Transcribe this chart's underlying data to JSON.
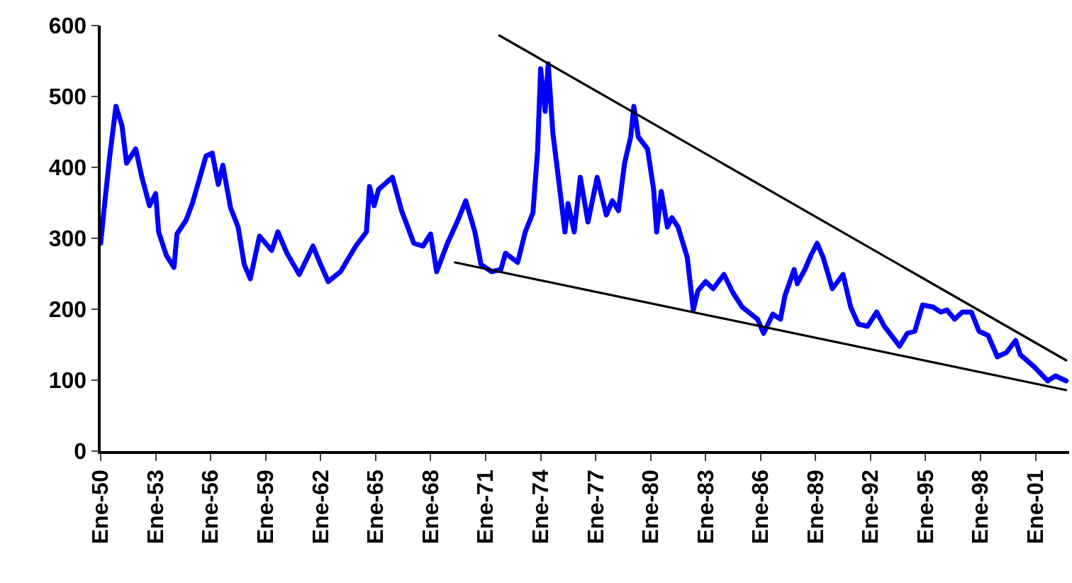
{
  "chart_data": {
    "type": "line",
    "marker": "none",
    "line_style": "solid",
    "xlim": [
      "1950-01",
      "2002-11"
    ],
    "ylim": [
      0,
      600
    ],
    "yticks": [
      0,
      100,
      200,
      300,
      400,
      500,
      600
    ],
    "xticks": [
      {
        "value": "1950-01",
        "label": "Ene-50"
      },
      {
        "value": "1953-01",
        "label": "Ene-53"
      },
      {
        "value": "1956-01",
        "label": "Ene-56"
      },
      {
        "value": "1959-01",
        "label": "Ene-59"
      },
      {
        "value": "1962-01",
        "label": "Ene-62"
      },
      {
        "value": "1965-01",
        "label": "Ene-65"
      },
      {
        "value": "1968-01",
        "label": "Ene-68"
      },
      {
        "value": "1971-01",
        "label": "Ene-71"
      },
      {
        "value": "1974-01",
        "label": "Ene-74"
      },
      {
        "value": "1977-01",
        "label": "Ene-77"
      },
      {
        "value": "1980-01",
        "label": "Ene-80"
      },
      {
        "value": "1983-01",
        "label": "Ene-83"
      },
      {
        "value": "1986-01",
        "label": "Ene-86"
      },
      {
        "value": "1989-01",
        "label": "Ene-89"
      },
      {
        "value": "1992-01",
        "label": "Ene-92"
      },
      {
        "value": "1995-01",
        "label": "Ene-95"
      },
      {
        "value": "1998-01",
        "label": "Ene-98"
      },
      {
        "value": "2001-01",
        "label": "Ene-01"
      }
    ],
    "series": [
      {
        "color": "#0000ff",
        "x": [
          "1950-01",
          "1950-04",
          "1950-07",
          "1950-11",
          "1951-03",
          "1951-06",
          "1951-12",
          "1952-04",
          "1952-09",
          "1953-01",
          "1953-03",
          "1953-08",
          "1954-01",
          "1954-03",
          "1954-09",
          "1955-01",
          "1955-06",
          "1955-10",
          "1956-02",
          "1956-06",
          "1956-09",
          "1957-02",
          "1957-07",
          "1957-11",
          "1958-03",
          "1958-09",
          "1959-05",
          "1959-09",
          "1960-03",
          "1960-11",
          "1961-08",
          "1962-01",
          "1962-06",
          "1963-02",
          "1963-12",
          "1964-07",
          "1964-09",
          "1964-12",
          "1965-03",
          "1965-12",
          "1966-06",
          "1967-02",
          "1967-08",
          "1968-01",
          "1968-05",
          "1968-12",
          "1969-07",
          "1969-12",
          "1970-06",
          "1970-10",
          "1971-05",
          "1971-11",
          "1972-02",
          "1972-10",
          "1973-03",
          "1973-08",
          "1973-11",
          "1974-01",
          "1974-04",
          "1974-06",
          "1974-09",
          "1975-01",
          "1975-05",
          "1975-07",
          "1975-11",
          "1976-03",
          "1976-08",
          "1977-02",
          "1977-08",
          "1977-12",
          "1978-04",
          "1978-08",
          "1978-12",
          "1979-02",
          "1979-05",
          "1979-11",
          "1980-03",
          "1980-05",
          "1980-08",
          "1980-12",
          "1981-03",
          "1981-07",
          "1982-01",
          "1982-05",
          "1982-08",
          "1983-01",
          "1983-06",
          "1984-01",
          "1984-07",
          "1985-01",
          "1985-11",
          "1986-03",
          "1986-09",
          "1987-02",
          "1987-05",
          "1987-11",
          "1988-01",
          "1988-06",
          "1988-10",
          "1989-02",
          "1989-06",
          "1989-12",
          "1990-07",
          "1990-12",
          "1991-05",
          "1991-11",
          "1992-05",
          "1992-10",
          "1993-08",
          "1994-01",
          "1994-06",
          "1994-11",
          "1995-06",
          "1995-11",
          "1996-03",
          "1996-08",
          "1997-01",
          "1997-07",
          "1997-12",
          "1998-06",
          "1998-12",
          "1999-06",
          "1999-12",
          "2000-03",
          "2000-12",
          "2001-09",
          "2002-02",
          "2002-09"
        ],
        "values": [
          293,
          356,
          416,
          486,
          459,
          406,
          426,
          386,
          346,
          363,
          309,
          276,
          259,
          306,
          326,
          349,
          386,
          416,
          420,
          376,
          403,
          343,
          316,
          263,
          243,
          303,
          283,
          309,
          279,
          249,
          289,
          263,
          239,
          253,
          289,
          309,
          373,
          346,
          369,
          386,
          339,
          293,
          289,
          306,
          253,
          293,
          326,
          353,
          309,
          263,
          253,
          256,
          279,
          266,
          309,
          336,
          423,
          539,
          479,
          546,
          449,
          379,
          309,
          349,
          309,
          386,
          323,
          386,
          333,
          353,
          339,
          406,
          443,
          486,
          443,
          426,
          369,
          309,
          366,
          316,
          329,
          316,
          273,
          199,
          226,
          239,
          229,
          249,
          223,
          203,
          186,
          166,
          193,
          186,
          219,
          256,
          236,
          256,
          276,
          293,
          273,
          229,
          249,
          203,
          179,
          176,
          196,
          176,
          148,
          166,
          169,
          206,
          203,
          196,
          199,
          186,
          196,
          196,
          169,
          163,
          133,
          139,
          156,
          136,
          119,
          99,
          106,
          99
        ]
      },
      {
        "type": "line",
        "color": "#000000",
        "x": [
          "1971-10",
          "2002-09"
        ],
        "values": [
          586,
          128
        ]
      },
      {
        "type": "line",
        "color": "#000000",
        "x": [
          "1969-05",
          "2002-09"
        ],
        "values": [
          266,
          86
        ]
      }
    ]
  }
}
